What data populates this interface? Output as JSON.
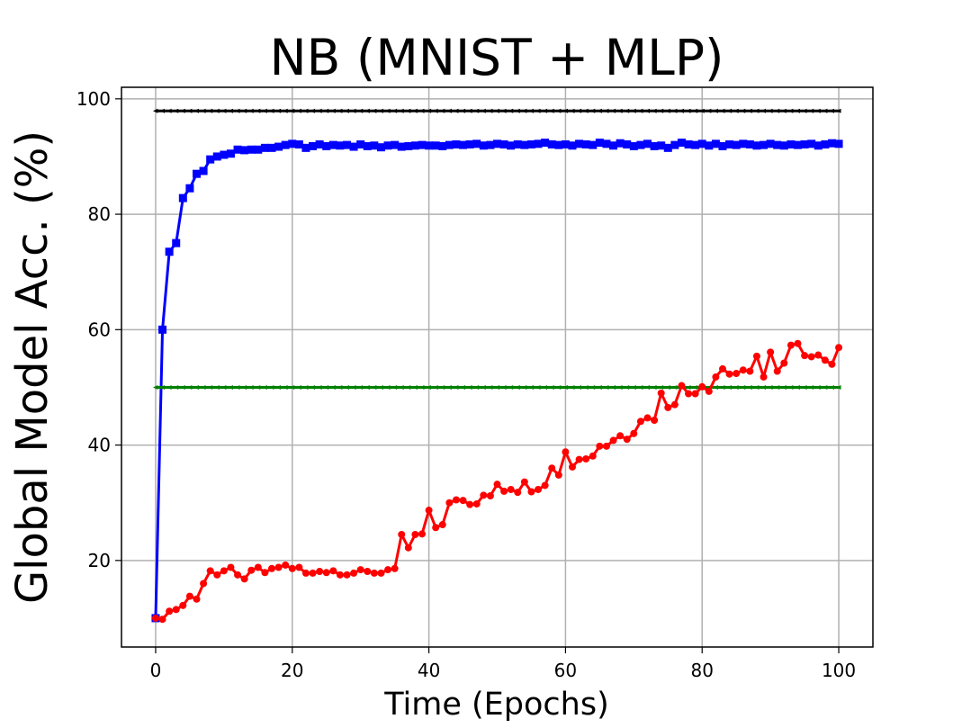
{
  "chart_data": {
    "type": "line",
    "title": "NB (MNIST + MLP)",
    "xlabel": "Time (Epochs)",
    "ylabel": "Global Model Acc. (%)",
    "xlim": [
      -5,
      105
    ],
    "ylim": [
      5,
      102
    ],
    "xticks": [
      0,
      20,
      40,
      60,
      80,
      100
    ],
    "yticks": [
      20,
      40,
      60,
      80,
      100
    ],
    "grid": true,
    "legend": "none",
    "series": [
      {
        "color": "#000000",
        "marker": "triangle-left",
        "values": [
          97.9,
          97.9,
          97.9,
          97.9,
          97.9,
          97.9,
          97.9,
          97.9,
          97.9,
          97.9,
          97.9,
          97.9,
          97.9,
          97.9,
          97.9,
          97.9,
          97.9,
          97.9,
          97.9,
          97.9,
          97.9,
          97.9,
          97.9,
          97.9,
          97.9,
          97.9,
          97.9,
          97.9,
          97.9,
          97.9,
          97.9,
          97.9,
          97.9,
          97.9,
          97.9,
          97.9,
          97.9,
          97.9,
          97.9,
          97.9,
          97.9,
          97.9,
          97.9,
          97.9,
          97.9,
          97.9,
          97.9,
          97.9,
          97.9,
          97.9,
          97.9,
          97.9,
          97.9,
          97.9,
          97.9,
          97.9,
          97.9,
          97.9,
          97.9,
          97.9,
          97.9,
          97.9,
          97.9,
          97.9,
          97.9,
          97.9,
          97.9,
          97.9,
          97.9,
          97.9,
          97.9,
          97.9,
          97.9,
          97.9,
          97.9,
          97.9,
          97.9,
          97.9,
          97.9,
          97.9,
          97.9,
          97.9,
          97.9,
          97.9,
          97.9,
          97.9,
          97.9,
          97.9,
          97.9,
          97.9,
          97.9,
          97.9,
          97.9,
          97.9,
          97.9,
          97.9,
          97.9,
          97.9,
          97.9,
          97.9,
          97.9
        ]
      },
      {
        "color": "#0000ff",
        "marker": "square",
        "values": [
          10,
          60,
          73.5,
          75,
          82.8,
          84.5,
          87,
          87.5,
          89.5,
          90,
          90.3,
          90.5,
          91.2,
          91.1,
          91.2,
          91.2,
          91.5,
          91.5,
          91.7,
          92,
          92.2,
          92.1,
          91.5,
          91.8,
          92.1,
          91.8,
          92,
          91.9,
          92,
          91.7,
          92.1,
          91.8,
          91.9,
          91.6,
          91.9,
          92,
          91.7,
          91.8,
          91.9,
          92,
          91.9,
          91.9,
          91.8,
          92,
          92.1,
          92,
          92.1,
          92.2,
          91.9,
          92,
          92.2,
          92.1,
          91.9,
          92.1,
          92,
          92.1,
          92.2,
          92.4,
          92.1,
          92,
          92.1,
          91.9,
          92.2,
          92.1,
          92,
          92.4,
          92.2,
          91.9,
          92.3,
          92.1,
          91.8,
          92,
          92.2,
          91.8,
          91.9,
          91.5,
          92,
          92.4,
          92.1,
          92,
          92.2,
          91.9,
          92.2,
          91.8,
          92.1,
          92,
          92.2,
          92.1,
          91.9,
          92,
          92.2,
          92,
          91.9,
          92.1,
          92,
          92.1,
          92.2,
          91.9,
          92.1,
          92.3,
          92.2
        ]
      },
      {
        "color": "#008000",
        "marker": "triangle-left",
        "values": [
          50,
          50,
          50,
          50,
          50,
          50,
          50,
          50,
          50,
          50,
          50,
          50,
          50,
          50,
          50,
          50,
          50,
          50,
          50,
          50,
          50,
          50,
          50,
          50,
          50,
          50,
          50,
          50,
          50,
          50,
          50,
          50,
          50,
          50,
          50,
          50,
          50,
          50,
          50,
          50,
          50,
          50,
          50,
          50,
          50,
          50,
          50,
          50,
          50,
          50,
          50,
          50,
          50,
          50,
          50,
          50,
          50,
          50,
          50,
          50,
          50,
          50,
          50,
          50,
          50,
          50,
          50,
          50,
          50,
          50,
          50,
          50,
          50,
          50,
          50,
          50,
          50,
          50,
          50,
          50,
          50,
          50,
          50,
          50,
          50,
          50,
          50,
          50,
          50,
          50,
          50,
          50,
          50,
          50,
          50,
          50,
          50,
          50,
          50,
          50,
          50
        ]
      },
      {
        "color": "#ff0000",
        "marker": "circle",
        "values": [
          10,
          9.8,
          11.2,
          11.5,
          12.2,
          13.8,
          13.3,
          16,
          18.2,
          17.5,
          18.2,
          18.8,
          17.5,
          16.8,
          18.3,
          18.8,
          17.9,
          18.6,
          18.8,
          19.2,
          18.6,
          18.8,
          17.8,
          17.8,
          18.1,
          17.9,
          18.2,
          17.5,
          17.5,
          17.8,
          18.4,
          18.1,
          17.8,
          17.8,
          18.4,
          18.6,
          24.5,
          22.2,
          24.5,
          24.6,
          28.7,
          25.7,
          26.2,
          30,
          30.5,
          30.4,
          29.7,
          29.8,
          31.3,
          31.2,
          33.2,
          32,
          32.3,
          31.8,
          33.6,
          31.9,
          32.3,
          33,
          36,
          34.8,
          38.8,
          36.2,
          37.5,
          37.6,
          38.1,
          39.8,
          39.8,
          40.8,
          41.6,
          41,
          42,
          44.1,
          44.7,
          44.3,
          49,
          46.5,
          47,
          50.3,
          48.9,
          48.9,
          50.1,
          49.3,
          51.8,
          53.2,
          52.3,
          52.4,
          53,
          52.8,
          55.4,
          51.8,
          56.1,
          52.8,
          54.2,
          57.3,
          57.6,
          55.5,
          55.3,
          55.6,
          54.7,
          54,
          56.9
        ]
      }
    ]
  }
}
